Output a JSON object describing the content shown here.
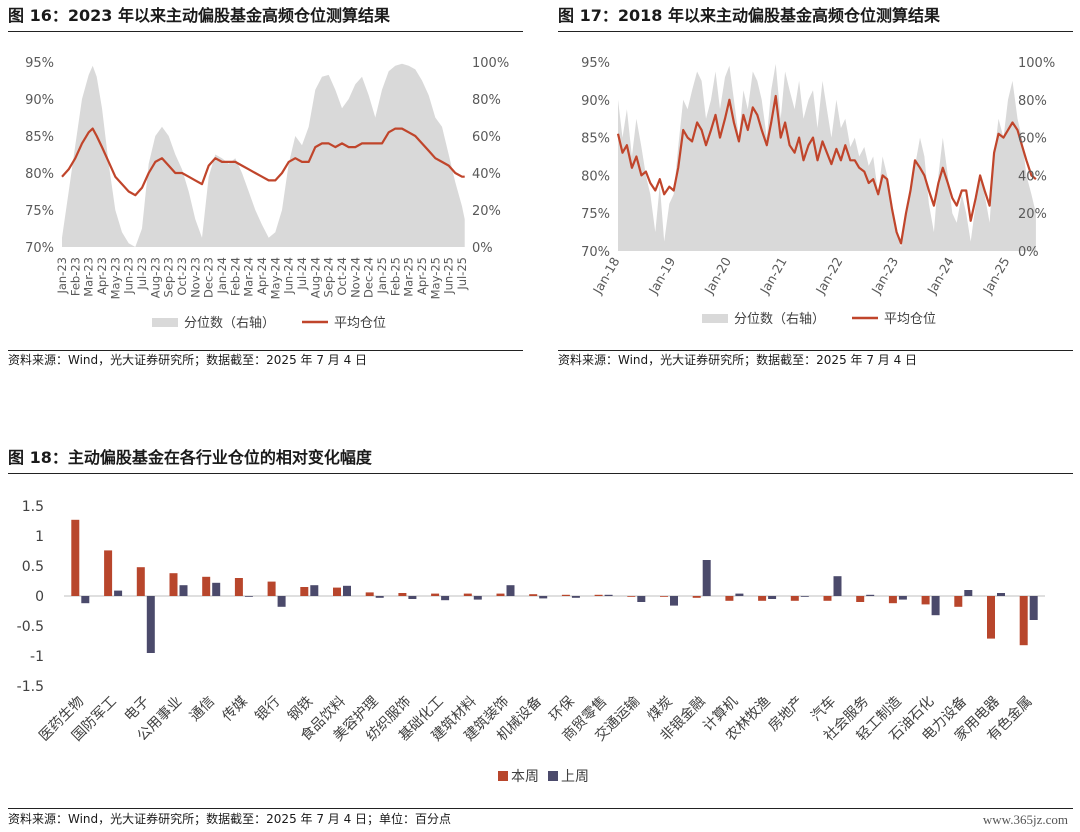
{
  "fig16": {
    "title": "图 16：2023 年以来主动偏股基金高频仓位测算结果",
    "source": "资料来源：Wind，光大证券研究所；数据截至：2025 年 7 月 4 日"
  },
  "fig17": {
    "title": "图 17：2018 年以来主动偏股基金高频仓位测算结果",
    "source": "资料来源：Wind，光大证券研究所；数据截至：2025 年 7 月 4 日"
  },
  "fig18": {
    "title": "图 18：主动偏股基金在各行业仓位的相对变化幅度",
    "source": "资料来源：Wind，光大证券研究所；数据截至：2025 年 7 月 4 日；单位：百分点"
  },
  "watermark": "www.365jz.com",
  "colors": {
    "percentile": "#d9d9d9",
    "average": "#c0452b",
    "this_week": "#b8462c",
    "last_week": "#4b4a6b"
  },
  "chart_data": [
    {
      "type": "area",
      "y_left_ticks": [
        "95%",
        "90%",
        "85%",
        "80%",
        "75%",
        "70%"
      ],
      "y_right_ticks": [
        "100%",
        "80%",
        "60%",
        "40%",
        "20%",
        "0%"
      ],
      "ylim_left": [
        70,
        95
      ],
      "ylim_right": [
        0,
        100
      ],
      "x_ticks": [
        "Jan-23",
        "Feb-23",
        "Mar-23",
        "Apr-23",
        "May-23",
        "Jun-23",
        "Jul-23",
        "Aug-23",
        "Sep-23",
        "Oct-23",
        "Nov-23",
        "Dec-23",
        "Jan-24",
        "Feb-24",
        "Mar-24",
        "Apr-24",
        "May-24",
        "Jun-24",
        "Jul-24",
        "Aug-24",
        "Sep-24",
        "Oct-24",
        "Nov-24",
        "Dec-24",
        "Jan-25",
        "Feb-25",
        "Mar-25",
        "Apr-25",
        "May-25",
        "Jun-25",
        "Jul-25"
      ],
      "legend_position": "bottom",
      "series": [
        {
          "name": "分位数（右轴）",
          "kind": "area",
          "axis": "right",
          "x": [
            0,
            0.5,
            1,
            1.5,
            2,
            2.3,
            2.6,
            3,
            3.5,
            4,
            4.5,
            5,
            5.5,
            6,
            6.5,
            7,
            7.5,
            8,
            8.5,
            9,
            9.5,
            10,
            10.5,
            11,
            11.5,
            12,
            12.5,
            13,
            13.5,
            14,
            14.5,
            15,
            15.5,
            16,
            16.5,
            17,
            17.5,
            18,
            18.5,
            19,
            19.5,
            20,
            20.5,
            21,
            21.5,
            22,
            22.5,
            23,
            23.5,
            24,
            24.5,
            25,
            25.5,
            26,
            26.5,
            27,
            27.5,
            28,
            28.5,
            29,
            29.5,
            30,
            30.2
          ],
          "values": [
            5,
            30,
            55,
            80,
            93,
            98,
            92,
            75,
            45,
            20,
            8,
            2,
            0,
            10,
            45,
            60,
            65,
            60,
            50,
            42,
            30,
            15,
            5,
            38,
            50,
            48,
            45,
            48,
            40,
            30,
            20,
            12,
            5,
            8,
            20,
            45,
            60,
            55,
            65,
            85,
            92,
            93,
            85,
            75,
            80,
            88,
            92,
            82,
            70,
            85,
            95,
            98,
            99,
            98,
            96,
            90,
            82,
            70,
            65,
            50,
            35,
            22,
            15
          ]
        },
        {
          "name": "平均仓位",
          "kind": "line",
          "axis": "left",
          "x": [
            0,
            0.5,
            1,
            1.5,
            2,
            2.3,
            2.6,
            3,
            3.5,
            4,
            4.5,
            5,
            5.5,
            6,
            6.5,
            7,
            7.5,
            8,
            8.5,
            9,
            9.5,
            10,
            10.5,
            11,
            11.5,
            12,
            12.5,
            13,
            13.5,
            14,
            14.5,
            15,
            15.5,
            16,
            16.5,
            17,
            17.5,
            18,
            18.5,
            19,
            19.5,
            20,
            20.5,
            21,
            21.5,
            22,
            22.5,
            23,
            23.5,
            24,
            24.5,
            25,
            25.5,
            26,
            26.5,
            27,
            27.5,
            28,
            28.5,
            29,
            29.5,
            30,
            30.2
          ],
          "values": [
            79.5,
            80.5,
            82,
            84,
            85.5,
            86,
            85,
            83.5,
            81.5,
            79.5,
            78.5,
            77.5,
            77,
            78,
            80,
            81.5,
            82,
            81,
            80,
            80,
            79.5,
            79,
            78.5,
            81,
            82,
            81.5,
            81.5,
            81.5,
            81,
            80.5,
            80,
            79.5,
            79,
            79,
            80,
            81.5,
            82,
            81.5,
            81.5,
            83.5,
            84,
            84,
            83.5,
            84,
            83.5,
            83.5,
            84,
            84,
            84,
            84,
            85.5,
            86,
            86,
            85.5,
            85,
            84,
            83,
            82,
            81.5,
            81,
            80,
            79.5,
            79.5
          ]
        }
      ]
    },
    {
      "type": "area",
      "y_left_ticks": [
        "95%",
        "90%",
        "85%",
        "80%",
        "75%",
        "70%"
      ],
      "y_right_ticks": [
        "100%",
        "80%",
        "60%",
        "40%",
        "20%",
        "0%"
      ],
      "ylim_left": [
        70,
        95
      ],
      "ylim_right": [
        0,
        100
      ],
      "x_ticks": [
        "Jan-18",
        "Jan-19",
        "Jan-20",
        "Jan-21",
        "Jan-22",
        "Jan-23",
        "Jan-24",
        "Jan-25"
      ],
      "legend_position": "bottom",
      "series": [
        {
          "name": "分位数（右轴）",
          "kind": "area",
          "axis": "right",
          "x": [
            0,
            0.08,
            0.16,
            0.25,
            0.33,
            0.42,
            0.5,
            0.58,
            0.67,
            0.75,
            0.83,
            0.92,
            1,
            1.08,
            1.17,
            1.25,
            1.33,
            1.42,
            1.5,
            1.58,
            1.67,
            1.75,
            1.83,
            1.92,
            2,
            2.08,
            2.17,
            2.25,
            2.33,
            2.42,
            2.5,
            2.58,
            2.67,
            2.75,
            2.83,
            2.92,
            3,
            3.08,
            3.17,
            3.25,
            3.33,
            3.42,
            3.5,
            3.58,
            3.67,
            3.75,
            3.83,
            3.92,
            4,
            4.08,
            4.17,
            4.25,
            4.33,
            4.42,
            4.5,
            4.58,
            4.67,
            4.75,
            4.83,
            4.92,
            5,
            5.08,
            5.17,
            5.25,
            5.33,
            5.42,
            5.5,
            5.58,
            5.67,
            5.75,
            5.83,
            5.92,
            6,
            6.08,
            6.17,
            6.25,
            6.33,
            6.42,
            6.5,
            6.58,
            6.67,
            6.75,
            6.83,
            6.92,
            7,
            7.08,
            7.17,
            7.25,
            7.33,
            7.42,
            7.5
          ],
          "values": [
            80,
            60,
            75,
            50,
            70,
            55,
            40,
            30,
            10,
            35,
            5,
            25,
            30,
            55,
            80,
            75,
            85,
            95,
            90,
            70,
            80,
            95,
            75,
            92,
            98,
            80,
            60,
            85,
            75,
            95,
            90,
            80,
            60,
            85,
            99,
            70,
            95,
            85,
            75,
            90,
            70,
            80,
            85,
            65,
            90,
            75,
            60,
            80,
            65,
            70,
            55,
            60,
            50,
            55,
            45,
            50,
            30,
            50,
            40,
            25,
            10,
            2,
            20,
            30,
            45,
            60,
            50,
            25,
            10,
            40,
            60,
            40,
            20,
            15,
            30,
            20,
            5,
            25,
            40,
            30,
            15,
            50,
            70,
            60,
            80,
            90,
            70,
            60,
            40,
            30,
            20
          ]
        },
        {
          "name": "平均仓位",
          "kind": "line",
          "axis": "left",
          "x": [
            0,
            0.08,
            0.16,
            0.25,
            0.33,
            0.42,
            0.5,
            0.58,
            0.67,
            0.75,
            0.83,
            0.92,
            1,
            1.08,
            1.17,
            1.25,
            1.33,
            1.42,
            1.5,
            1.58,
            1.67,
            1.75,
            1.83,
            1.92,
            2,
            2.08,
            2.17,
            2.25,
            2.33,
            2.42,
            2.5,
            2.58,
            2.67,
            2.75,
            2.83,
            2.92,
            3,
            3.08,
            3.17,
            3.25,
            3.33,
            3.42,
            3.5,
            3.58,
            3.67,
            3.75,
            3.83,
            3.92,
            4,
            4.08,
            4.17,
            4.25,
            4.33,
            4.42,
            4.5,
            4.58,
            4.67,
            4.75,
            4.83,
            4.92,
            5,
            5.08,
            5.17,
            5.25,
            5.33,
            5.42,
            5.5,
            5.58,
            5.67,
            5.75,
            5.83,
            5.92,
            6,
            6.08,
            6.17,
            6.25,
            6.33,
            6.42,
            6.5,
            6.58,
            6.67,
            6.75,
            6.83,
            6.92,
            7,
            7.08,
            7.17,
            7.25,
            7.33,
            7.42,
            7.5
          ],
          "values": [
            85.5,
            83,
            84,
            81,
            82.5,
            80,
            80.5,
            79,
            78,
            79.5,
            77.5,
            78.5,
            78,
            81,
            86,
            85,
            84.5,
            87,
            86,
            84,
            86,
            88,
            85,
            87.5,
            90,
            87,
            84.5,
            88,
            86,
            89,
            88,
            86,
            84,
            87,
            90.5,
            85,
            87,
            84,
            83,
            85,
            82,
            84,
            85,
            82,
            84.5,
            83,
            81.5,
            83.5,
            82,
            84,
            82,
            82,
            81,
            80.5,
            79,
            79.5,
            77.5,
            80,
            79.5,
            75.5,
            72.5,
            71,
            75,
            78,
            82,
            81,
            80,
            78,
            76,
            79,
            81,
            79,
            77,
            76,
            78,
            78,
            74,
            77,
            80,
            78,
            76,
            83,
            85.5,
            85,
            86,
            87,
            86,
            84,
            82,
            80,
            79.5
          ]
        }
      ]
    },
    {
      "type": "bar",
      "ylim": [
        -1.5,
        1.5
      ],
      "y_ticks": [
        "1.5",
        "1",
        "0.5",
        "0",
        "-0.5",
        "-1",
        "-1.5"
      ],
      "legend_position": "bottom",
      "categories": [
        "医药生物",
        "国防军工",
        "电子",
        "公用事业",
        "通信",
        "传媒",
        "银行",
        "钢铁",
        "食品饮料",
        "美容护理",
        "纺织服饰",
        "基础化工",
        "建筑材料",
        "建筑装饰",
        "机械设备",
        "环保",
        "商贸零售",
        "交通运输",
        "煤炭",
        "非银金融",
        "计算机",
        "农林牧渔",
        "房地产",
        "汽车",
        "社会服务",
        "轻工制造",
        "石油石化",
        "电力设备",
        "家用电器",
        "有色金属"
      ],
      "series": [
        {
          "name": "本周",
          "values": [
            1.27,
            0.76,
            0.48,
            0.38,
            0.32,
            0.3,
            0.24,
            0.15,
            0.14,
            0.06,
            0.05,
            0.04,
            0.04,
            0.04,
            0.03,
            0.02,
            0.02,
            0.0,
            0.0,
            -0.03,
            -0.08,
            -0.08,
            -0.08,
            -0.08,
            -0.1,
            -0.12,
            -0.14,
            -0.18,
            -0.71,
            -0.82
          ]
        },
        {
          "name": "上周",
          "values": [
            -0.12,
            0.09,
            -0.95,
            0.18,
            0.22,
            0.0,
            -0.18,
            0.18,
            0.17,
            -0.03,
            -0.05,
            -0.07,
            -0.06,
            0.18,
            -0.04,
            -0.03,
            0.02,
            -0.1,
            -0.16,
            0.6,
            0.04,
            -0.05,
            0.0,
            0.33,
            0.02,
            -0.06,
            -0.32,
            0.1,
            0.05,
            -0.4
          ]
        }
      ]
    }
  ]
}
